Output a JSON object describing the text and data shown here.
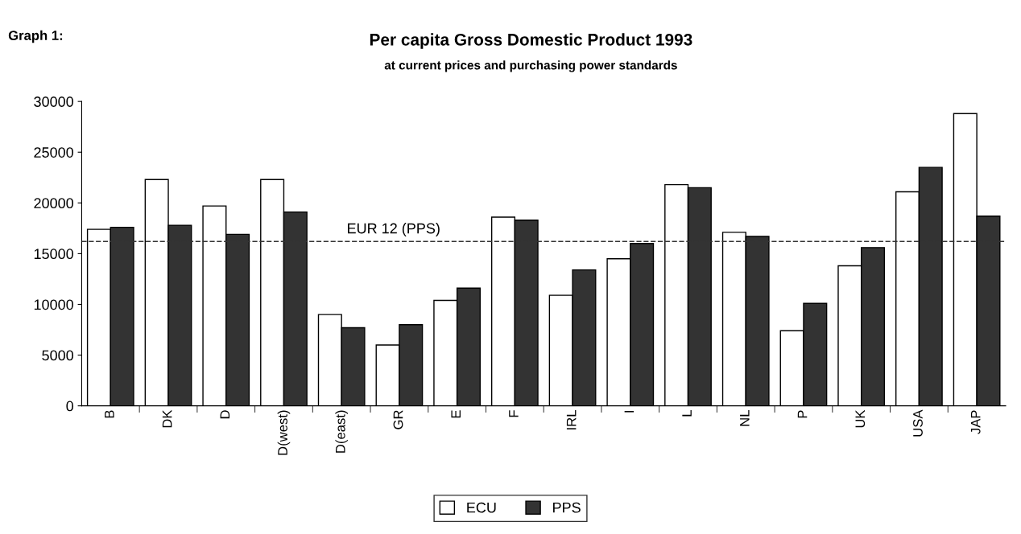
{
  "chart_data": {
    "type": "bar",
    "title": "Per capita Gross Domestic Product 1993",
    "subtitle": "at current prices and purchasing power standards",
    "annotations": [
      "Graph 1:"
    ],
    "categories": [
      "B",
      "DK",
      "D",
      "D(west)",
      "D(east)",
      "GR",
      "E",
      "F",
      "IRL",
      "I",
      "L",
      "NL",
      "P",
      "UK",
      "USA",
      "JAP"
    ],
    "series": [
      {
        "name": "ECU",
        "color": "#ffffff",
        "values": [
          17400,
          22300,
          19700,
          22300,
          9000,
          6000,
          10400,
          18600,
          10900,
          14500,
          21800,
          17100,
          7400,
          13800,
          21100,
          28800
        ]
      },
      {
        "name": "PPS",
        "color": "#333333",
        "values": [
          17600,
          17800,
          16900,
          19100,
          7700,
          8000,
          11600,
          18300,
          13400,
          16000,
          21500,
          16700,
          10100,
          15600,
          23500,
          18700
        ]
      }
    ],
    "ref_lines": [
      {
        "axis": "y",
        "value": 16200,
        "label": "EUR 12 (PPS)",
        "color": "#333333",
        "line_style": "dashed"
      }
    ],
    "ylim": [
      0,
      30000
    ],
    "yticks": [
      0,
      5000,
      10000,
      15000,
      20000,
      25000,
      30000
    ],
    "grid": false,
    "legend": "bottom"
  }
}
